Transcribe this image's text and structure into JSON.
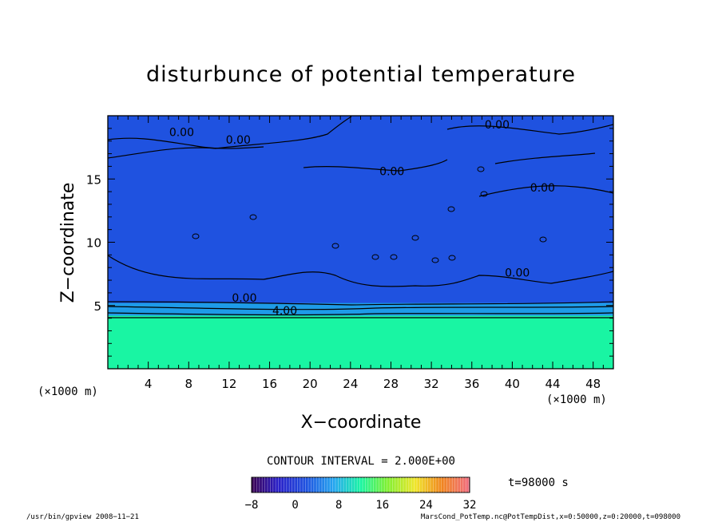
{
  "chart_data": {
    "type": "heatmap",
    "title": "disturbunce of potential temperature",
    "xlabel": "X−coordinate",
    "ylabel": "Z−coordinate",
    "x_unit_left": "(×1000 m)",
    "x_unit_right": "(×1000 m)",
    "xlim": [
      0,
      50
    ],
    "ylim": [
      0,
      20
    ],
    "x_ticks": [
      4,
      8,
      12,
      16,
      20,
      24,
      28,
      32,
      36,
      40,
      44,
      48
    ],
    "y_ticks": [
      5,
      10,
      15
    ],
    "contour_interval_text": "CONTOUR INTERVAL = 2.000E+00",
    "time_text": "t=98000 s",
    "colorbar": {
      "min": -8,
      "max": 32,
      "tick_labels": [
        "−8",
        "0",
        "8",
        "16",
        "24",
        "32"
      ],
      "tick_values": [
        -8,
        0,
        8,
        16,
        24,
        32
      ]
    },
    "contour_labels": [
      {
        "text": "0.00",
        "x": 7.3,
        "z": 18.4
      },
      {
        "text": "0.00",
        "x": 12.9,
        "z": 17.8
      },
      {
        "text": "0.00",
        "x": 28.1,
        "z": 15.3
      },
      {
        "text": "0.00",
        "x": 38.5,
        "z": 19.0
      },
      {
        "text": "0.00",
        "x": 43.0,
        "z": 14.0
      },
      {
        "text": "0.00",
        "x": 40.5,
        "z": 7.3
      },
      {
        "text": "0.00",
        "x": 13.5,
        "z": 5.3
      },
      {
        "text": "4.00",
        "x": 17.5,
        "z": 4.3
      }
    ],
    "regions": [
      {
        "z_range": [
          0,
          4.2
        ],
        "value": 14,
        "color": "#19f5a3"
      },
      {
        "z_range": [
          4.2,
          5.2
        ],
        "value": 6,
        "color": "#1e9be8"
      },
      {
        "z_range": [
          5.2,
          20
        ],
        "value": -2,
        "color": "#1f52e0"
      }
    ],
    "grid": false
  },
  "footer": {
    "left": "/usr/bin/gpview   2008−11−21",
    "right": "MarsCond_PotTemp.nc@PotTempDist,x=0:50000,z=0:20000,t=098000"
  }
}
